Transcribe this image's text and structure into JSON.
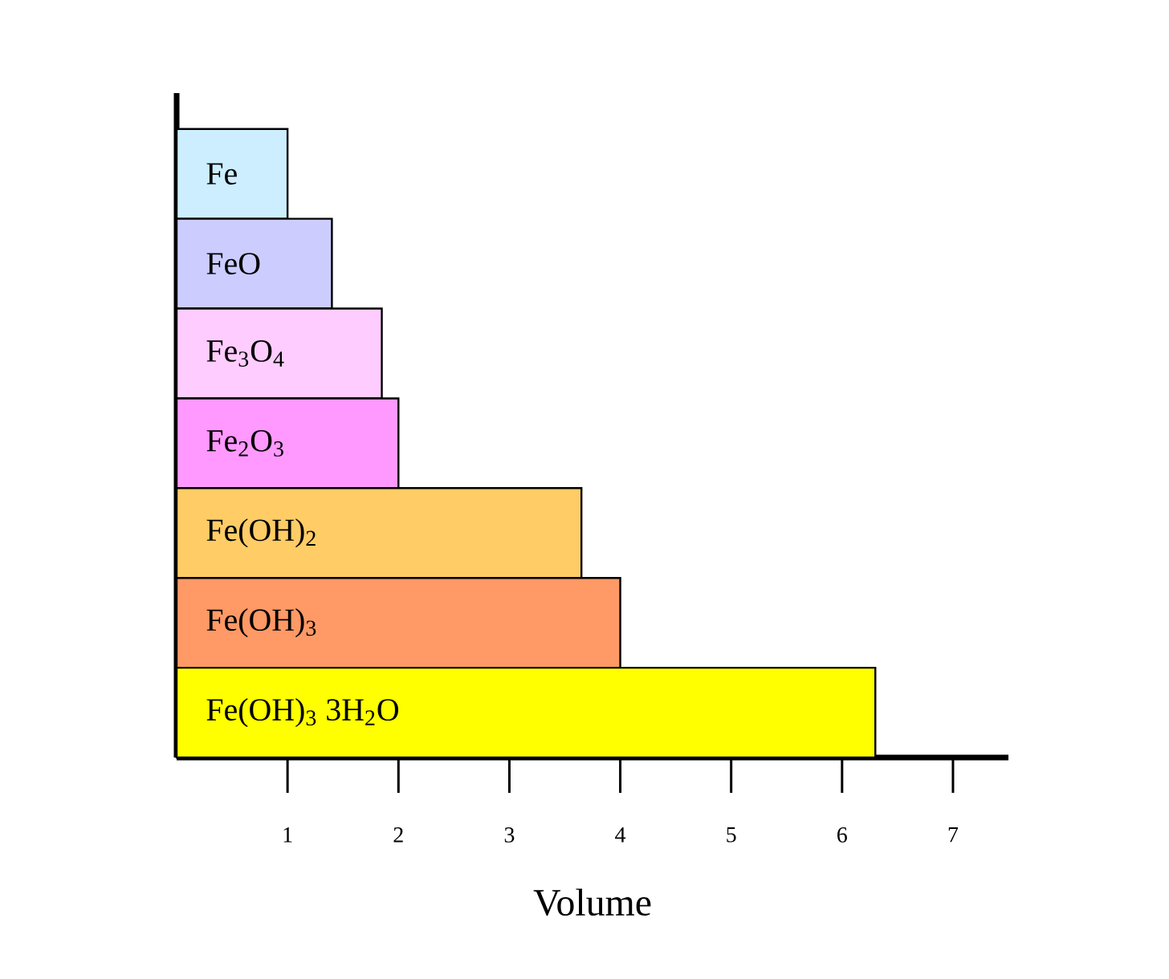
{
  "chart_data": {
    "type": "bar",
    "orientation": "horizontal",
    "xlabel": "Volume",
    "categories": [
      "Fe",
      "FeO",
      "Fe$_{3}$O$_{4}$",
      "Fe$_{2}$O$_{3}$",
      "Fe(OH)$_{2}$",
      "Fe(OH)$_{3}$",
      "Fe(OH)$_{3}$  3H$_{2}$O"
    ],
    "values": [
      1,
      1.4,
      1.85,
      2,
      3.65,
      4,
      6.3
    ],
    "colors": [
      "#cceeff",
      "#ccccff",
      "#ffccff",
      "#ff99ff",
      "#ffcc66",
      "#ff9966",
      "#ffff00"
    ],
    "xlim": [
      0,
      7.5
    ],
    "xticks": [
      1,
      2,
      3,
      4,
      5,
      6,
      7
    ]
  }
}
